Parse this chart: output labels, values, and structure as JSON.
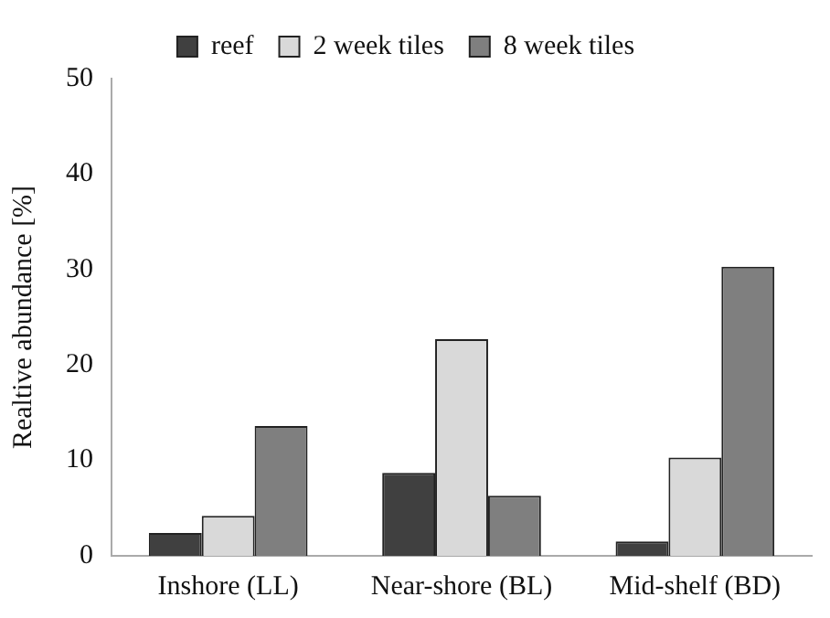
{
  "chart_data": {
    "type": "bar",
    "ylabel": "Realtive abundance [%]",
    "categories": [
      "Inshore (LL)",
      "Near-shore (BL)",
      "Mid-shelf (BD)"
    ],
    "series": [
      {
        "name": "reef",
        "color": "#404040",
        "values": [
          2.4,
          8.7,
          1.5
        ]
      },
      {
        "name": "2 week tiles",
        "color": "#d9d9d9",
        "values": [
          4.2,
          22.7,
          10.3
        ]
      },
      {
        "name": "8 week tiles",
        "color": "#7f7f7f",
        "values": [
          13.6,
          6.3,
          30.3
        ]
      }
    ],
    "ylim": [
      0,
      50
    ],
    "yticks": [
      0,
      10,
      20,
      30,
      40,
      50
    ],
    "grid": false,
    "legend": "top"
  }
}
